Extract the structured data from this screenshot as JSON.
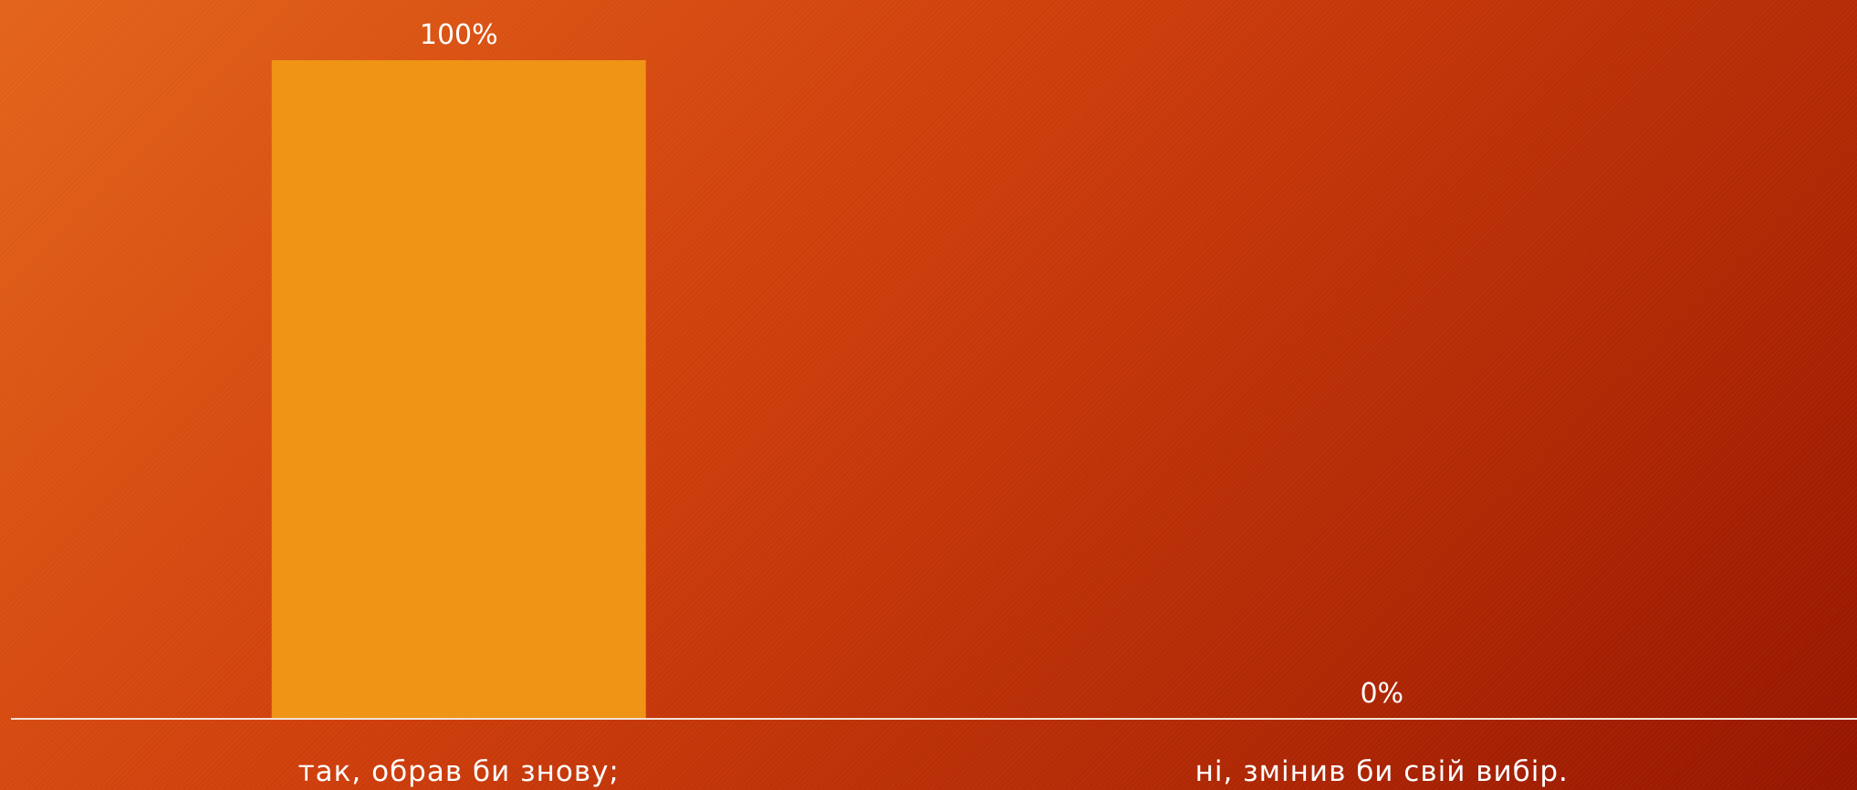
{
  "chart_data": {
    "type": "bar",
    "categories": [
      "так, обрав би знову;",
      "ні, змінив би свій вибір."
    ],
    "values": [
      100,
      0
    ],
    "value_labels": [
      "100%",
      "0%"
    ],
    "ylim": [
      0,
      100
    ],
    "grid": false,
    "legend": "none",
    "colors": {
      "bar": "#f09416",
      "axis": "#f3e2d6",
      "text": "#ffffff",
      "background_start": "#e3641a",
      "background_end": "#951500"
    }
  }
}
